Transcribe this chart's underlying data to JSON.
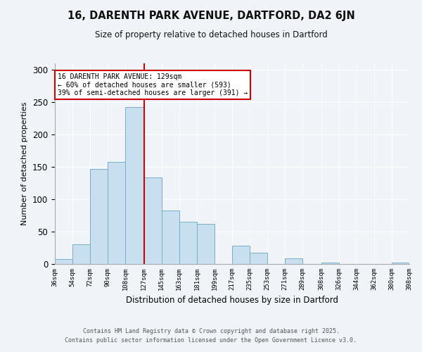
{
  "title": "16, DARENTH PARK AVENUE, DARTFORD, DA2 6JN",
  "subtitle": "Size of property relative to detached houses in Dartford",
  "xlabel": "Distribution of detached houses by size in Dartford",
  "ylabel": "Number of detached properties",
  "bar_color": "#c8dff0",
  "bar_edge_color": "#7aaec8",
  "background_color": "#f0f4f8",
  "grid_color": "#ffffff",
  "bins": [
    36,
    54,
    72,
    90,
    108,
    127,
    145,
    163,
    181,
    199,
    217,
    235,
    253,
    271,
    289,
    308,
    326,
    344,
    362,
    380,
    398
  ],
  "bin_labels": [
    "36sqm",
    "54sqm",
    "72sqm",
    "90sqm",
    "108sqm",
    "127sqm",
    "145sqm",
    "163sqm",
    "181sqm",
    "199sqm",
    "217sqm",
    "235sqm",
    "253sqm",
    "271sqm",
    "289sqm",
    "308sqm",
    "326sqm",
    "344sqm",
    "362sqm",
    "380sqm",
    "398sqm"
  ],
  "heights": [
    8,
    30,
    147,
    158,
    243,
    134,
    83,
    65,
    62,
    0,
    28,
    17,
    0,
    9,
    0,
    2,
    0,
    0,
    0,
    2
  ],
  "vline_x": 127,
  "vline_color": "#cc0000",
  "ylim": [
    0,
    310
  ],
  "yticks": [
    0,
    50,
    100,
    150,
    200,
    250,
    300
  ],
  "annotation_title": "16 DARENTH PARK AVENUE: 129sqm",
  "annotation_line1": "← 60% of detached houses are smaller (593)",
  "annotation_line2": "39% of semi-detached houses are larger (391) →",
  "annotation_box_color": "#ffffff",
  "annotation_box_edge": "#cc0000",
  "footer_line1": "Contains HM Land Registry data © Crown copyright and database right 2025.",
  "footer_line2": "Contains public sector information licensed under the Open Government Licence v3.0."
}
